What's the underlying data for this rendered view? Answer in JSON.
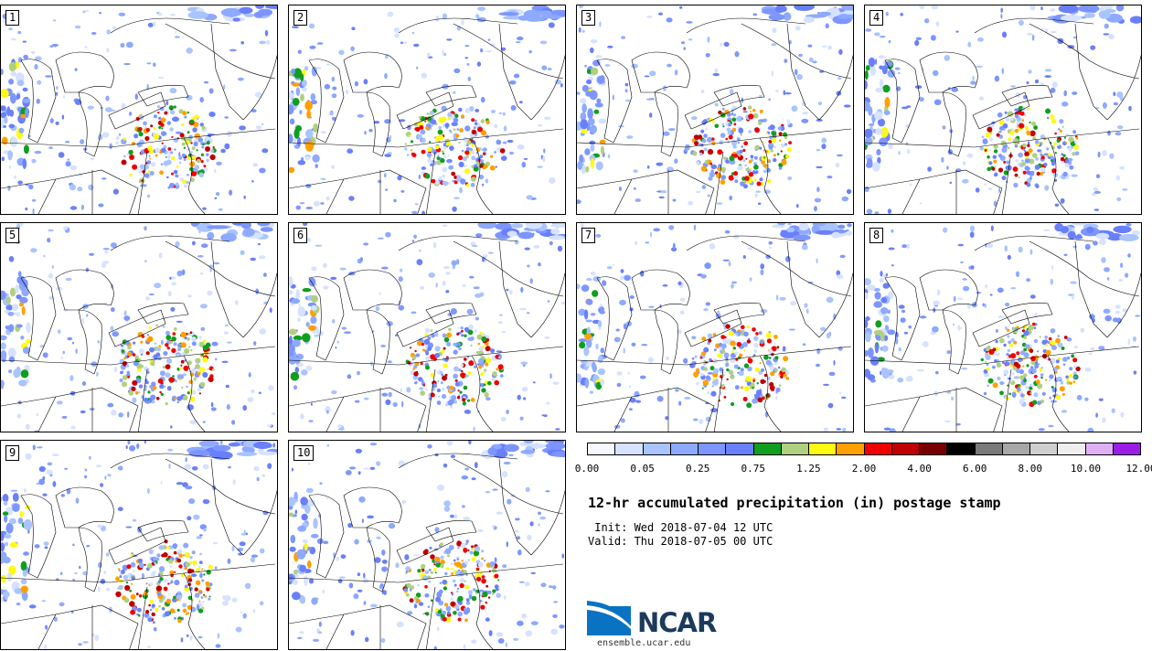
{
  "members": [
    {
      "label": "1"
    },
    {
      "label": "2"
    },
    {
      "label": "3"
    },
    {
      "label": "4"
    },
    {
      "label": "5"
    },
    {
      "label": "6"
    },
    {
      "label": "7"
    },
    {
      "label": "8"
    },
    {
      "label": "9"
    },
    {
      "label": "10"
    }
  ],
  "colorbar": {
    "colors": [
      "#f4f8ff",
      "#d6e2ff",
      "#a9c4ff",
      "#8eaaff",
      "#7d96ff",
      "#6a80fa",
      "#109e1e",
      "#b0d080",
      "#fffa14",
      "#ffa000",
      "#f00000",
      "#c00000",
      "#7a0000",
      "#000000",
      "#7a7a7a",
      "#a8a8a8",
      "#cfcfcf",
      "#eeeeee",
      "#e0b0f6",
      "#9b1de6"
    ],
    "tick_labels": [
      "0.00",
      "0.05",
      "0.25",
      "0.75",
      "1.25",
      "2.00",
      "4.00",
      "6.00",
      "8.00",
      "10.00",
      "12.00"
    ]
  },
  "title": "12-hr accumulated precipitation (in) postage stamp",
  "init": " Init: Wed 2018-07-04 12 UTC",
  "valid": "Valid: Thu 2018-07-05 00 UTC",
  "logo": {
    "text": "NCAR",
    "url": "ensemble.ucar.edu"
  }
}
